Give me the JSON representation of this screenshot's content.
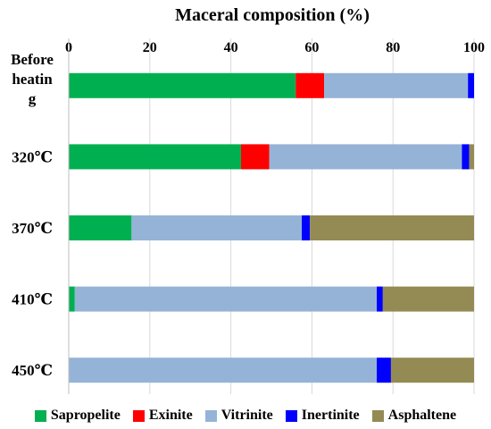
{
  "chart_data": {
    "type": "bar",
    "orientation": "horizontal",
    "stacked": true,
    "title": "",
    "xlabel": "Maceral composition (%)",
    "ylabel": "",
    "xlim": [
      0,
      100
    ],
    "xticks": [
      "0",
      "20",
      "40",
      "60",
      "80",
      "100"
    ],
    "grid": true,
    "legend_position": "bottom",
    "categories": [
      "Before heating",
      "320℃",
      "370℃",
      "410℃",
      "450℃"
    ],
    "category_labels": [
      [
        "Before",
        "heatin",
        "g"
      ],
      [
        "320℃"
      ],
      [
        "370℃"
      ],
      [
        "410℃"
      ],
      [
        "450℃"
      ]
    ],
    "series": [
      {
        "name": "Sapropelite",
        "color": "#00b050",
        "values": [
          56,
          42.5,
          15.5,
          1.5,
          0
        ]
      },
      {
        "name": "Exinite",
        "color": "#ff0000",
        "values": [
          7,
          7,
          0,
          0,
          0
        ]
      },
      {
        "name": "Vitrinite",
        "color": "#95b3d7",
        "values": [
          35.5,
          47.5,
          42,
          74.5,
          76
        ]
      },
      {
        "name": "Inertinite",
        "color": "#0000ff",
        "values": [
          1.5,
          1.8,
          2,
          1.5,
          3.5
        ]
      },
      {
        "name": "Asphaltene",
        "color": "#948a54",
        "values": [
          0,
          1.2,
          40.5,
          22.5,
          20.5
        ]
      }
    ]
  }
}
